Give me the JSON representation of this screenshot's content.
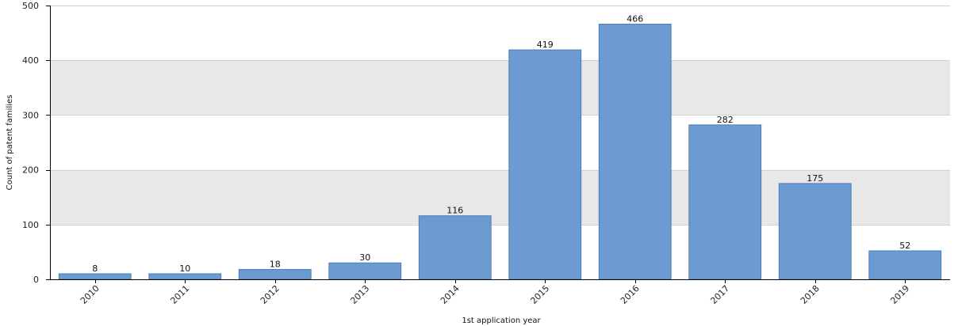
{
  "chart_data": {
    "type": "bar",
    "title": "",
    "xlabel": "1st application year",
    "ylabel": "Count of patent families",
    "categories": [
      "2010",
      "2011",
      "2012",
      "2013",
      "2014",
      "2015",
      "2016",
      "2017",
      "2018",
      "2019"
    ],
    "values": [
      8,
      10,
      18,
      30,
      116,
      419,
      466,
      282,
      175,
      52
    ],
    "ylim": [
      0,
      500
    ],
    "yticks": [
      "0",
      "100",
      "200",
      "300",
      "400",
      "500"
    ],
    "grid": "alternating horizontal bands",
    "legend": "none",
    "colors": {
      "bar_fill": "#6b9bd0",
      "bar_stroke": "#4a7db5",
      "band": "#e8e8e8",
      "grid_line": "#d0d0d0",
      "axis": "#000000"
    }
  }
}
